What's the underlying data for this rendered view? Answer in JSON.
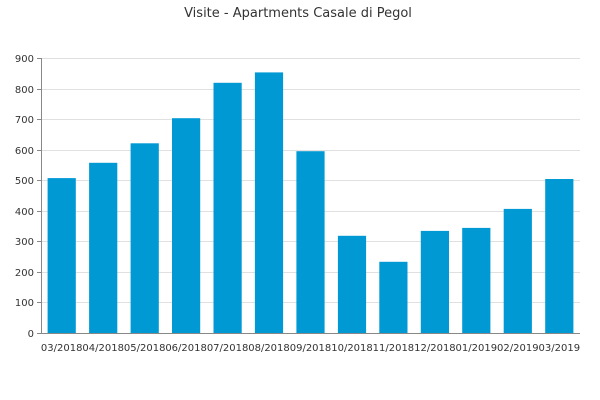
{
  "chart_data": {
    "type": "bar",
    "title": "Visite - Apartments Casale di Pegol",
    "xlabel": "",
    "ylabel": "",
    "categories": [
      "03/2018",
      "04/2018",
      "05/2018",
      "06/2018",
      "07/2018",
      "08/2018",
      "09/2018",
      "10/2018",
      "11/2018",
      "12/2018",
      "01/2019",
      "02/2019",
      "03/2019"
    ],
    "values": [
      507,
      557,
      621,
      703,
      819,
      853,
      595,
      318,
      233,
      334,
      344,
      406,
      504
    ],
    "ylim": [
      0,
      900
    ],
    "yticks": [
      0,
      100,
      200,
      300,
      400,
      500,
      600,
      700,
      800,
      900
    ],
    "grid": true,
    "legend": "none",
    "colors": {
      "bar": "#0099d4"
    }
  }
}
